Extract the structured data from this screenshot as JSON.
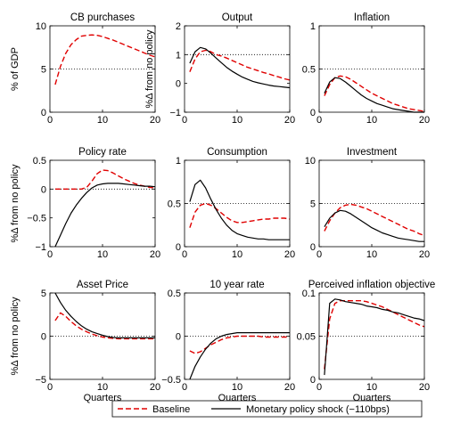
{
  "legend": {
    "placement": "bottom-center",
    "entries": [
      {
        "label": "Baseline",
        "color": "#e00000",
        "style": "dashed"
      },
      {
        "label": "Monetary policy shock (−110bps)",
        "color": "#000000",
        "style": "solid"
      }
    ]
  },
  "chart_data": [
    {
      "type": "line",
      "title": "CB purchases",
      "ylabel": "% of GDP",
      "xlabel": "",
      "xlim": [
        0,
        20
      ],
      "ylim": [
        0,
        10
      ],
      "xticks": [
        "0",
        "10",
        "20"
      ],
      "xtick_values": [
        0,
        10,
        20
      ],
      "yticks": [
        "0",
        "5",
        "10"
      ],
      "ytick_values": [
        0,
        5,
        10
      ],
      "ref_line": 5,
      "grid": false,
      "series": [
        {
          "name": "Baseline",
          "color": "#e00000",
          "style": "dashed",
          "x": [
            1,
            2,
            3,
            4,
            5,
            6,
            7,
            8,
            9,
            10,
            11,
            12,
            13,
            14,
            15,
            16,
            17,
            18,
            19,
            20
          ],
          "y": [
            3.2,
            5.3,
            6.8,
            7.8,
            8.4,
            8.8,
            8.9,
            8.95,
            8.9,
            8.75,
            8.55,
            8.35,
            8.1,
            7.85,
            7.6,
            7.35,
            7.1,
            6.85,
            6.6,
            6.4
          ]
        }
      ]
    },
    {
      "type": "line",
      "title": "Output",
      "ylabel": "%Δ from no policy",
      "xlabel": "",
      "xlim": [
        0,
        20
      ],
      "ylim": [
        -1,
        2
      ],
      "xticks": [
        "0",
        "10",
        "20"
      ],
      "xtick_values": [
        0,
        10,
        20
      ],
      "yticks": [
        "−1",
        "0",
        "1",
        "2"
      ],
      "ytick_values": [
        -1,
        0,
        1,
        2
      ],
      "ref_line": 1,
      "grid": false,
      "series": [
        {
          "name": "Baseline",
          "color": "#e00000",
          "style": "dashed",
          "x": [
            1,
            2,
            3,
            4,
            5,
            6,
            7,
            8,
            9,
            10,
            11,
            12,
            13,
            14,
            15,
            16,
            17,
            18,
            19,
            20
          ],
          "y": [
            0.4,
            0.85,
            1.1,
            1.15,
            1.1,
            1.0,
            0.95,
            0.88,
            0.8,
            0.72,
            0.64,
            0.56,
            0.5,
            0.44,
            0.38,
            0.33,
            0.27,
            0.22,
            0.16,
            0.12
          ]
        },
        {
          "name": "Monetary policy shock (−110bps)",
          "color": "#000000",
          "style": "solid",
          "x": [
            1,
            2,
            3,
            4,
            5,
            6,
            7,
            8,
            9,
            10,
            11,
            12,
            13,
            14,
            15,
            16,
            17,
            18,
            19,
            20
          ],
          "y": [
            0.7,
            1.1,
            1.25,
            1.2,
            1.05,
            0.88,
            0.72,
            0.56,
            0.43,
            0.32,
            0.22,
            0.14,
            0.07,
            0.02,
            -0.02,
            -0.06,
            -0.09,
            -0.11,
            -0.13,
            -0.15
          ]
        }
      ]
    },
    {
      "type": "line",
      "title": "Inflation",
      "ylabel": "",
      "xlabel": "",
      "xlim": [
        0,
        20
      ],
      "ylim": [
        0,
        1
      ],
      "xticks": [
        "0",
        "10",
        "20"
      ],
      "xtick_values": [
        0,
        10,
        20
      ],
      "yticks": [
        "0",
        "0.5",
        "1"
      ],
      "ytick_values": [
        0,
        0.5,
        1
      ],
      "ref_line": 0.5,
      "grid": false,
      "series": [
        {
          "name": "Baseline",
          "color": "#e00000",
          "style": "dashed",
          "x": [
            1,
            2,
            3,
            4,
            5,
            6,
            7,
            8,
            9,
            10,
            11,
            12,
            13,
            14,
            15,
            16,
            17,
            18,
            19,
            20
          ],
          "y": [
            0.19,
            0.32,
            0.4,
            0.42,
            0.41,
            0.38,
            0.34,
            0.3,
            0.26,
            0.22,
            0.19,
            0.16,
            0.13,
            0.1,
            0.08,
            0.06,
            0.04,
            0.03,
            0.02,
            0.01
          ]
        },
        {
          "name": "Monetary policy shock (−110bps)",
          "color": "#000000",
          "style": "solid",
          "x": [
            1,
            2,
            3,
            4,
            5,
            6,
            7,
            8,
            9,
            10,
            11,
            12,
            13,
            14,
            15,
            16,
            17,
            18,
            19,
            20
          ],
          "y": [
            0.22,
            0.35,
            0.4,
            0.39,
            0.35,
            0.3,
            0.25,
            0.2,
            0.16,
            0.13,
            0.1,
            0.08,
            0.06,
            0.04,
            0.03,
            0.02,
            0.01,
            0.0,
            0.0,
            0.0
          ]
        }
      ]
    },
    {
      "type": "line",
      "title": "Policy rate",
      "ylabel": "%Δ from no policy",
      "xlabel": "",
      "xlim": [
        0,
        20
      ],
      "ylim": [
        -1,
        0.5
      ],
      "xticks": [
        "0",
        "10",
        "20"
      ],
      "xtick_values": [
        0,
        10,
        20
      ],
      "yticks": [
        "−1",
        "−0.5",
        "0",
        "0.5"
      ],
      "ytick_values": [
        -1,
        -0.5,
        0,
        0.5
      ],
      "ref_line": 0,
      "grid": false,
      "series": [
        {
          "name": "Baseline",
          "color": "#e00000",
          "style": "dashed",
          "x": [
            1,
            2,
            3,
            4,
            5,
            6,
            7,
            8,
            9,
            10,
            11,
            12,
            13,
            14,
            15,
            16,
            17,
            18,
            19,
            20
          ],
          "y": [
            0,
            0,
            0,
            0,
            0,
            0,
            0.03,
            0.14,
            0.27,
            0.33,
            0.32,
            0.28,
            0.23,
            0.18,
            0.14,
            0.1,
            0.07,
            0.05,
            0.03,
            0.02
          ]
        },
        {
          "name": "Monetary policy shock (−110bps)",
          "color": "#000000",
          "style": "solid",
          "x": [
            1,
            2,
            3,
            4,
            5,
            6,
            7,
            8,
            9,
            10,
            11,
            12,
            13,
            14,
            15,
            16,
            17,
            18,
            19,
            20
          ],
          "y": [
            -1.0,
            -0.8,
            -0.6,
            -0.42,
            -0.28,
            -0.16,
            -0.06,
            0.02,
            0.07,
            0.09,
            0.1,
            0.1,
            0.1,
            0.09,
            0.08,
            0.07,
            0.06,
            0.05,
            0.05,
            0.04
          ]
        }
      ]
    },
    {
      "type": "line",
      "title": "Consumption",
      "ylabel": "",
      "xlabel": "",
      "xlim": [
        0,
        20
      ],
      "ylim": [
        0,
        1
      ],
      "xticks": [
        "0",
        "10",
        "20"
      ],
      "xtick_values": [
        0,
        10,
        20
      ],
      "yticks": [
        "0",
        "0.5",
        "1"
      ],
      "ytick_values": [
        0,
        0.5,
        1
      ],
      "ref_line": 0.5,
      "grid": false,
      "series": [
        {
          "name": "Baseline",
          "color": "#e00000",
          "style": "dashed",
          "x": [
            1,
            2,
            3,
            4,
            5,
            6,
            7,
            8,
            9,
            10,
            11,
            12,
            13,
            14,
            15,
            16,
            17,
            18,
            19,
            20
          ],
          "y": [
            0.22,
            0.4,
            0.48,
            0.5,
            0.48,
            0.44,
            0.39,
            0.34,
            0.3,
            0.28,
            0.28,
            0.29,
            0.3,
            0.31,
            0.32,
            0.32,
            0.33,
            0.33,
            0.33,
            0.32
          ]
        },
        {
          "name": "Monetary policy shock (−110bps)",
          "color": "#000000",
          "style": "solid",
          "x": [
            1,
            2,
            3,
            4,
            5,
            6,
            7,
            8,
            9,
            10,
            11,
            12,
            13,
            14,
            15,
            16,
            17,
            18,
            19,
            20
          ],
          "y": [
            0.52,
            0.72,
            0.77,
            0.68,
            0.55,
            0.43,
            0.33,
            0.25,
            0.19,
            0.15,
            0.13,
            0.11,
            0.1,
            0.09,
            0.09,
            0.08,
            0.08,
            0.08,
            0.08,
            0.08
          ]
        }
      ]
    },
    {
      "type": "line",
      "title": "Investment",
      "ylabel": "",
      "xlabel": "",
      "xlim": [
        0,
        20
      ],
      "ylim": [
        0,
        10
      ],
      "xticks": [
        "0",
        "10",
        "20"
      ],
      "xtick_values": [
        0,
        10,
        20
      ],
      "yticks": [
        "0",
        "5",
        "10"
      ],
      "ytick_values": [
        0,
        5,
        10
      ],
      "ref_line": 5,
      "grid": false,
      "series": [
        {
          "name": "Baseline",
          "color": "#e00000",
          "style": "dashed",
          "x": [
            1,
            2,
            3,
            4,
            5,
            6,
            7,
            8,
            9,
            10,
            11,
            12,
            13,
            14,
            15,
            16,
            17,
            18,
            19,
            20
          ],
          "y": [
            1.8,
            3.0,
            3.9,
            4.5,
            4.8,
            4.9,
            4.8,
            4.6,
            4.4,
            4.1,
            3.8,
            3.5,
            3.2,
            2.9,
            2.6,
            2.3,
            2.0,
            1.8,
            1.5,
            1.3
          ]
        },
        {
          "name": "Monetary policy shock (−110bps)",
          "color": "#000000",
          "style": "solid",
          "x": [
            1,
            2,
            3,
            4,
            5,
            6,
            7,
            8,
            9,
            10,
            11,
            12,
            13,
            14,
            15,
            16,
            17,
            18,
            19,
            20
          ],
          "y": [
            2.3,
            3.3,
            3.9,
            4.2,
            4.1,
            3.8,
            3.4,
            3.0,
            2.6,
            2.2,
            1.9,
            1.6,
            1.4,
            1.2,
            1.0,
            0.9,
            0.8,
            0.7,
            0.6,
            0.6
          ]
        }
      ]
    },
    {
      "type": "line",
      "title": "Asset Price",
      "ylabel": "%Δ from no policy",
      "xlabel": "Quarters",
      "xlim": [
        0,
        20
      ],
      "ylim": [
        -5,
        5
      ],
      "xticks": [
        "0",
        "10",
        "20"
      ],
      "xtick_values": [
        0,
        10,
        20
      ],
      "yticks": [
        "−5",
        "0",
        "5"
      ],
      "ytick_values": [
        -5,
        0,
        5
      ],
      "ref_line": 0,
      "grid": false,
      "series": [
        {
          "name": "Baseline",
          "color": "#e00000",
          "style": "dashed",
          "x": [
            1,
            2,
            3,
            4,
            5,
            6,
            7,
            8,
            9,
            10,
            11,
            12,
            13,
            14,
            15,
            16,
            17,
            18,
            19,
            20
          ],
          "y": [
            1.8,
            2.7,
            2.3,
            1.7,
            1.2,
            0.8,
            0.5,
            0.25,
            0.05,
            -0.1,
            -0.2,
            -0.25,
            -0.3,
            -0.3,
            -0.3,
            -0.3,
            -0.3,
            -0.3,
            -0.3,
            -0.3
          ]
        },
        {
          "name": "Monetary policy shock (−110bps)",
          "color": "#000000",
          "style": "solid",
          "x": [
            1,
            2,
            3,
            4,
            5,
            6,
            7,
            8,
            9,
            10,
            11,
            12,
            13,
            14,
            15,
            16,
            17,
            18,
            19,
            20
          ],
          "y": [
            5.0,
            3.9,
            3.0,
            2.3,
            1.7,
            1.2,
            0.8,
            0.5,
            0.3,
            0.1,
            -0.05,
            -0.15,
            -0.2,
            -0.2,
            -0.2,
            -0.2,
            -0.2,
            -0.2,
            -0.2,
            -0.2
          ]
        }
      ]
    },
    {
      "type": "line",
      "title": "10 year rate",
      "ylabel": "",
      "xlabel": "Quarters",
      "xlim": [
        0,
        20
      ],
      "ylim": [
        -0.5,
        0.5
      ],
      "xticks": [
        "0",
        "10",
        "20"
      ],
      "xtick_values": [
        0,
        10,
        20
      ],
      "yticks": [
        "−0.5",
        "0",
        "0.5"
      ],
      "ytick_values": [
        -0.5,
        0,
        0.5
      ],
      "ref_line": 0,
      "grid": false,
      "series": [
        {
          "name": "Baseline",
          "color": "#e00000",
          "style": "dashed",
          "x": [
            1,
            2,
            3,
            4,
            5,
            6,
            7,
            8,
            9,
            10,
            11,
            12,
            13,
            14,
            15,
            16,
            17,
            18,
            19,
            20
          ],
          "y": [
            -0.17,
            -0.2,
            -0.18,
            -0.14,
            -0.1,
            -0.07,
            -0.04,
            -0.02,
            -0.01,
            0.0,
            0.0,
            0.0,
            0.0,
            0.0,
            -0.01,
            -0.01,
            -0.01,
            -0.01,
            -0.01,
            -0.01
          ]
        },
        {
          "name": "Monetary policy shock (−110bps)",
          "color": "#000000",
          "style": "solid",
          "x": [
            1,
            2,
            3,
            4,
            5,
            6,
            7,
            8,
            9,
            10,
            11,
            12,
            13,
            14,
            15,
            16,
            17,
            18,
            19,
            20
          ],
          "y": [
            -0.5,
            -0.35,
            -0.24,
            -0.15,
            -0.08,
            -0.03,
            0.0,
            0.02,
            0.03,
            0.04,
            0.04,
            0.04,
            0.04,
            0.04,
            0.04,
            0.04,
            0.04,
            0.04,
            0.04,
            0.04
          ]
        }
      ]
    },
    {
      "type": "line",
      "title": "Perceived inflation objective",
      "ylabel": "",
      "xlabel": "Quarters",
      "xlim": [
        0,
        20
      ],
      "ylim": [
        0,
        0.1
      ],
      "xticks": [
        "0",
        "10",
        "20"
      ],
      "xtick_values": [
        0,
        10,
        20
      ],
      "yticks": [
        "0",
        "0.05",
        "0.1"
      ],
      "ytick_values": [
        0,
        0.05,
        0.1
      ],
      "ref_line": 0.05,
      "grid": false,
      "series": [
        {
          "name": "Baseline",
          "color": "#e00000",
          "style": "dashed",
          "x": [
            1,
            2,
            3,
            4,
            5,
            6,
            7,
            8,
            9,
            10,
            11,
            12,
            13,
            14,
            15,
            16,
            17,
            18,
            19,
            20
          ],
          "y": [
            0.012,
            0.07,
            0.088,
            0.091,
            0.091,
            0.091,
            0.091,
            0.091,
            0.09,
            0.088,
            0.086,
            0.084,
            0.081,
            0.078,
            0.075,
            0.072,
            0.069,
            0.066,
            0.063,
            0.061
          ]
        },
        {
          "name": "Monetary policy shock (−110bps)",
          "color": "#000000",
          "style": "solid",
          "x": [
            1,
            2,
            3,
            4,
            5,
            6,
            7,
            8,
            9,
            10,
            11,
            12,
            13,
            14,
            15,
            16,
            17,
            18,
            19,
            20
          ],
          "y": [
            0.005,
            0.088,
            0.093,
            0.092,
            0.09,
            0.089,
            0.088,
            0.087,
            0.085,
            0.084,
            0.083,
            0.081,
            0.08,
            0.078,
            0.077,
            0.075,
            0.073,
            0.071,
            0.07,
            0.068
          ]
        }
      ]
    }
  ]
}
